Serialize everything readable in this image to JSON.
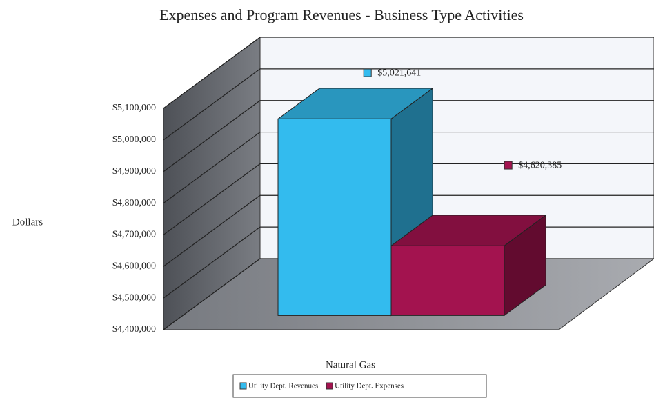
{
  "chart_data": {
    "type": "bar3d",
    "title": "Expenses and Program Revenues - Business Type Activities",
    "y_label": "Dollars",
    "categories": [
      "Natural Gas"
    ],
    "series": [
      {
        "name": "Utility Dept. Revenues",
        "color": "#33bbee",
        "values": [
          5021641
        ],
        "value_labels": [
          "$5,021,641"
        ]
      },
      {
        "name": "Utility Dept. Expenses",
        "color": "#a3134f",
        "values": [
          4620385
        ],
        "value_labels": [
          "$4,620,385"
        ]
      }
    ],
    "ylim": [
      4400000,
      5100000
    ],
    "yticks": [
      {
        "value": 4400000,
        "label": "$4,400,000"
      },
      {
        "value": 4500000,
        "label": "$4,500,000"
      },
      {
        "value": 4600000,
        "label": "$4,600,000"
      },
      {
        "value": 4700000,
        "label": "$4,700,000"
      },
      {
        "value": 4800000,
        "label": "$4,800,000"
      },
      {
        "value": 4900000,
        "label": "$4,900,000"
      },
      {
        "value": 5000000,
        "label": "$5,000,000"
      },
      {
        "value": 5100000,
        "label": "$5,100,000"
      }
    ],
    "grid": true
  }
}
